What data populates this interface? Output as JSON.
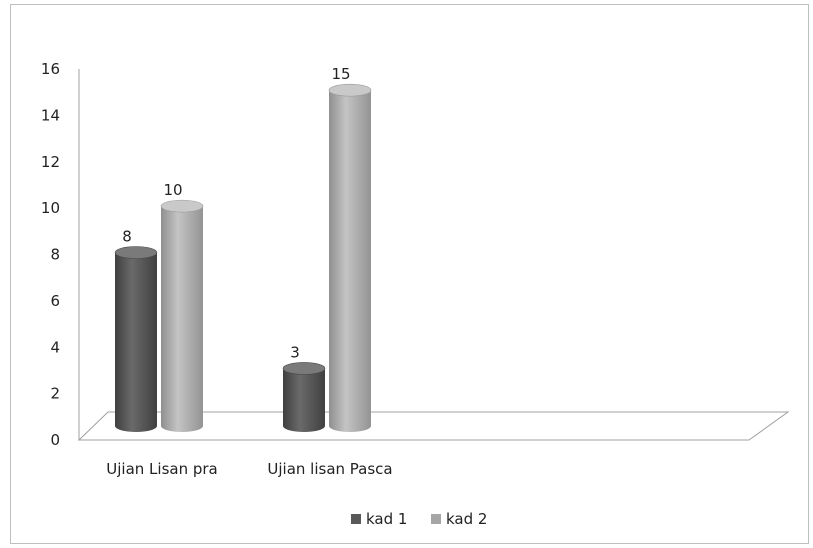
{
  "chart_data": {
    "type": "bar",
    "categories": [
      "Ujian Lisan pra",
      "Ujian lisan Pasca"
    ],
    "series": [
      {
        "name": "kad 1",
        "values": [
          8,
          3
        ],
        "color": "#595959"
      },
      {
        "name": "kad 2",
        "values": [
          10,
          15
        ],
        "color": "#a6a6a6"
      }
    ],
    "ylim": [
      0,
      16
    ],
    "y_ticks": [
      0,
      2,
      4,
      6,
      8,
      10,
      12,
      14,
      16
    ],
    "data_labels": true,
    "legend_position": "bottom",
    "bar_shape": "cylinder",
    "grid": false
  }
}
